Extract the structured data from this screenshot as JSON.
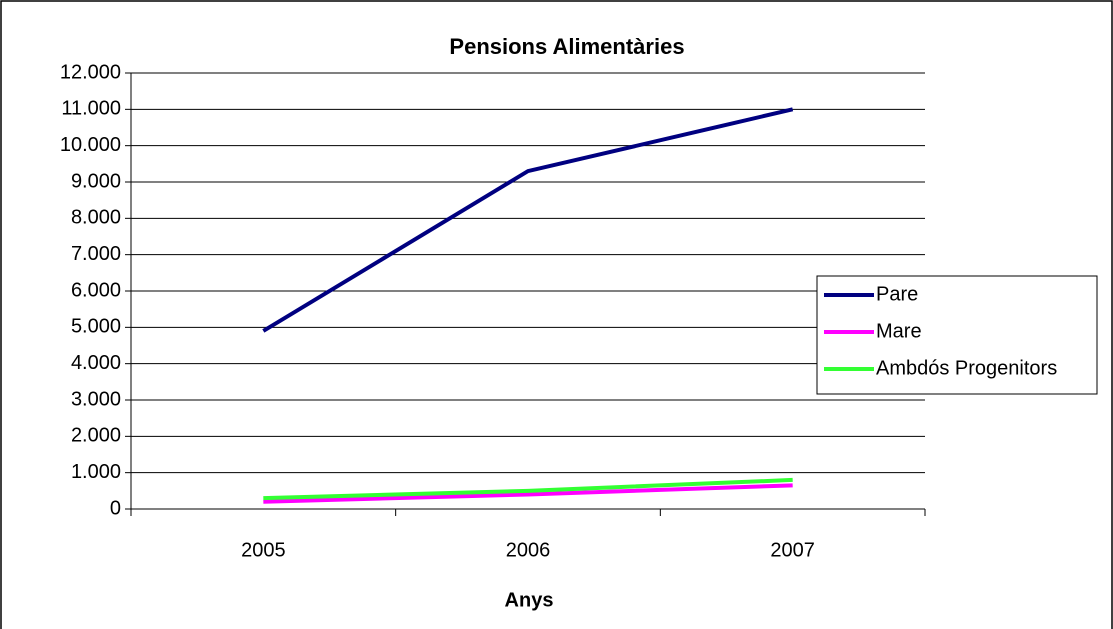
{
  "chart_data": {
    "type": "line",
    "title": "Pensions Alimentàries",
    "x_label": "Anys",
    "categories": [
      "2005",
      "2006",
      "2007"
    ],
    "series": [
      {
        "name": "Pare",
        "color": "#000080",
        "values": [
          4900,
          9300,
          11000
        ]
      },
      {
        "name": "Mare",
        "color": "#ff00ff",
        "values": [
          200,
          400,
          650
        ]
      },
      {
        "name": "Ambdós Progenitors",
        "color": "#33ff33",
        "values": [
          300,
          500,
          800
        ]
      }
    ],
    "ylim": [
      0,
      12000
    ],
    "yticks": [
      0,
      {
        "value": 1000,
        "label": "1.000"
      },
      {
        "value": 2000,
        "label": "2.000"
      },
      {
        "value": 3000,
        "label": "3.000"
      },
      {
        "value": 4000,
        "label": "4.000"
      },
      {
        "value": 5000,
        "label": "5.000"
      },
      {
        "value": 6000,
        "label": "6.000"
      },
      {
        "value": 7000,
        "label": "7.000"
      },
      {
        "value": 8000,
        "label": "8.000"
      },
      {
        "value": 9000,
        "label": "9.000"
      },
      {
        "value": 10000,
        "label": "10.000"
      },
      {
        "value": 11000,
        "label": "11.000"
      },
      {
        "value": 12000,
        "label": "12.000"
      }
    ],
    "grid": true,
    "legend": "right"
  }
}
